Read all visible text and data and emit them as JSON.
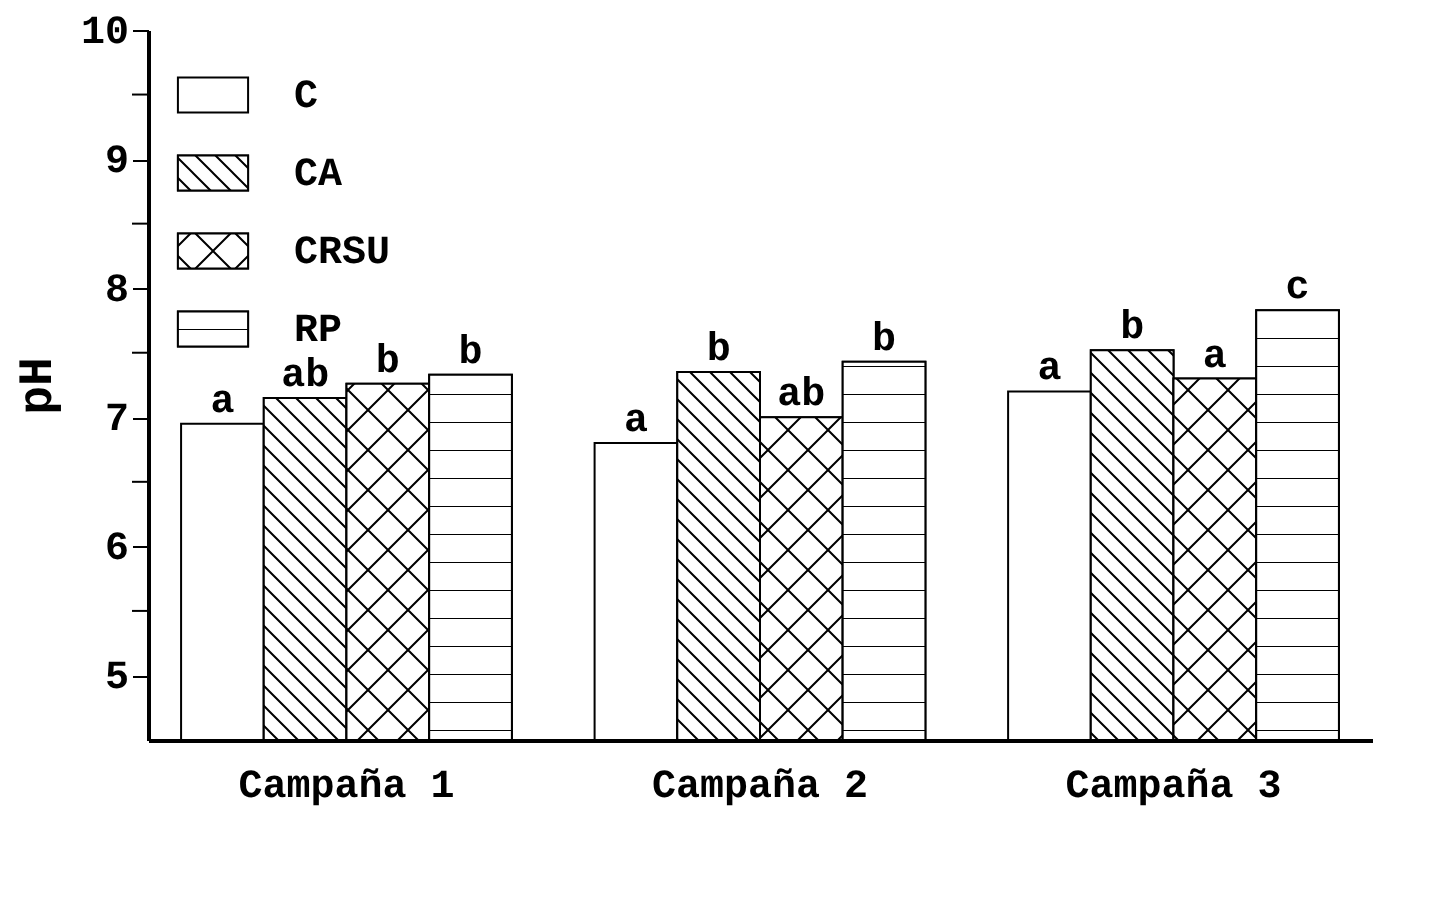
{
  "chart_data": {
    "type": "bar",
    "ylabel": "pH",
    "categories": [
      "Campaña 1",
      "Campaña 2",
      "Campaña 3"
    ],
    "series": [
      {
        "name": "C",
        "color": "#ffffff",
        "values": [
          6.95,
          6.8,
          7.2
        ],
        "value_labels": [
          "a",
          "a",
          "a"
        ]
      },
      {
        "name": "CA",
        "color": "#ffffff",
        "values": [
          7.15,
          7.35,
          7.52
        ],
        "value_labels": [
          "ab",
          "b",
          "b"
        ]
      },
      {
        "name": "CRSU",
        "color": "#ffffff",
        "values": [
          7.26,
          7.0,
          7.3
        ],
        "value_labels": [
          "b",
          "ab",
          "a"
        ]
      },
      {
        "name": "RP",
        "color": "#ffffff",
        "values": [
          7.33,
          7.43,
          7.83
        ],
        "value_labels": [
          "b",
          "b",
          "c"
        ]
      }
    ],
    "ylim": [
      4.5,
      10
    ],
    "yticks": [
      5,
      {
        "value": 5.5,
        "label": null
      },
      6,
      {
        "value": 6.5,
        "label": null
      },
      7,
      {
        "value": 7.5,
        "label": null
      },
      8,
      {
        "value": 8.5,
        "label": null
      },
      9,
      {
        "value": 9.5,
        "label": null
      },
      10
    ],
    "grid": false,
    "legend": "top left"
  }
}
